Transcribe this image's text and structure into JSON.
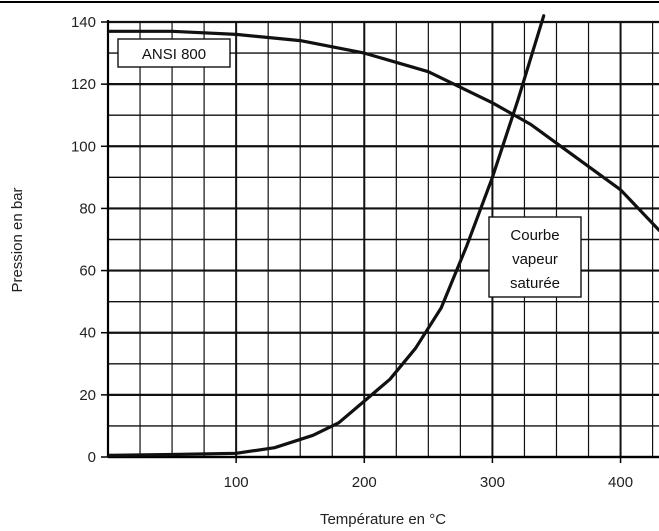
{
  "chart_data": {
    "type": "line",
    "title": "",
    "xlabel": "Température en °C",
    "ylabel": "Pression en bar",
    "xlim": [
      0,
      430
    ],
    "ylim": [
      0,
      140
    ],
    "x_ticks": [
      100,
      200,
      300,
      400
    ],
    "y_ticks": [
      0,
      20,
      40,
      60,
      80,
      100,
      120,
      140
    ],
    "grid": true,
    "series": [
      {
        "name": "ANSI 800",
        "x": [
          0,
          50,
          100,
          150,
          200,
          250,
          300,
          330,
          350,
          400,
          430
        ],
        "y": [
          137,
          137,
          136,
          134,
          130,
          124,
          114,
          107,
          101,
          86,
          73
        ],
        "color": "#111111"
      },
      {
        "name": "Courbe vapeur saturée",
        "x": [
          0,
          50,
          100,
          130,
          160,
          180,
          200,
          220,
          240,
          260,
          280,
          300,
          320,
          340
        ],
        "y": [
          0.5,
          0.8,
          1.2,
          3,
          7,
          11,
          18,
          25,
          35,
          48,
          68,
          90,
          115,
          142
        ],
        "color": "#111111"
      }
    ],
    "annotations": {
      "ansi_box": "ANSI 800",
      "steam_box": [
        "Courbe",
        "vapeur",
        "saturée"
      ]
    }
  }
}
